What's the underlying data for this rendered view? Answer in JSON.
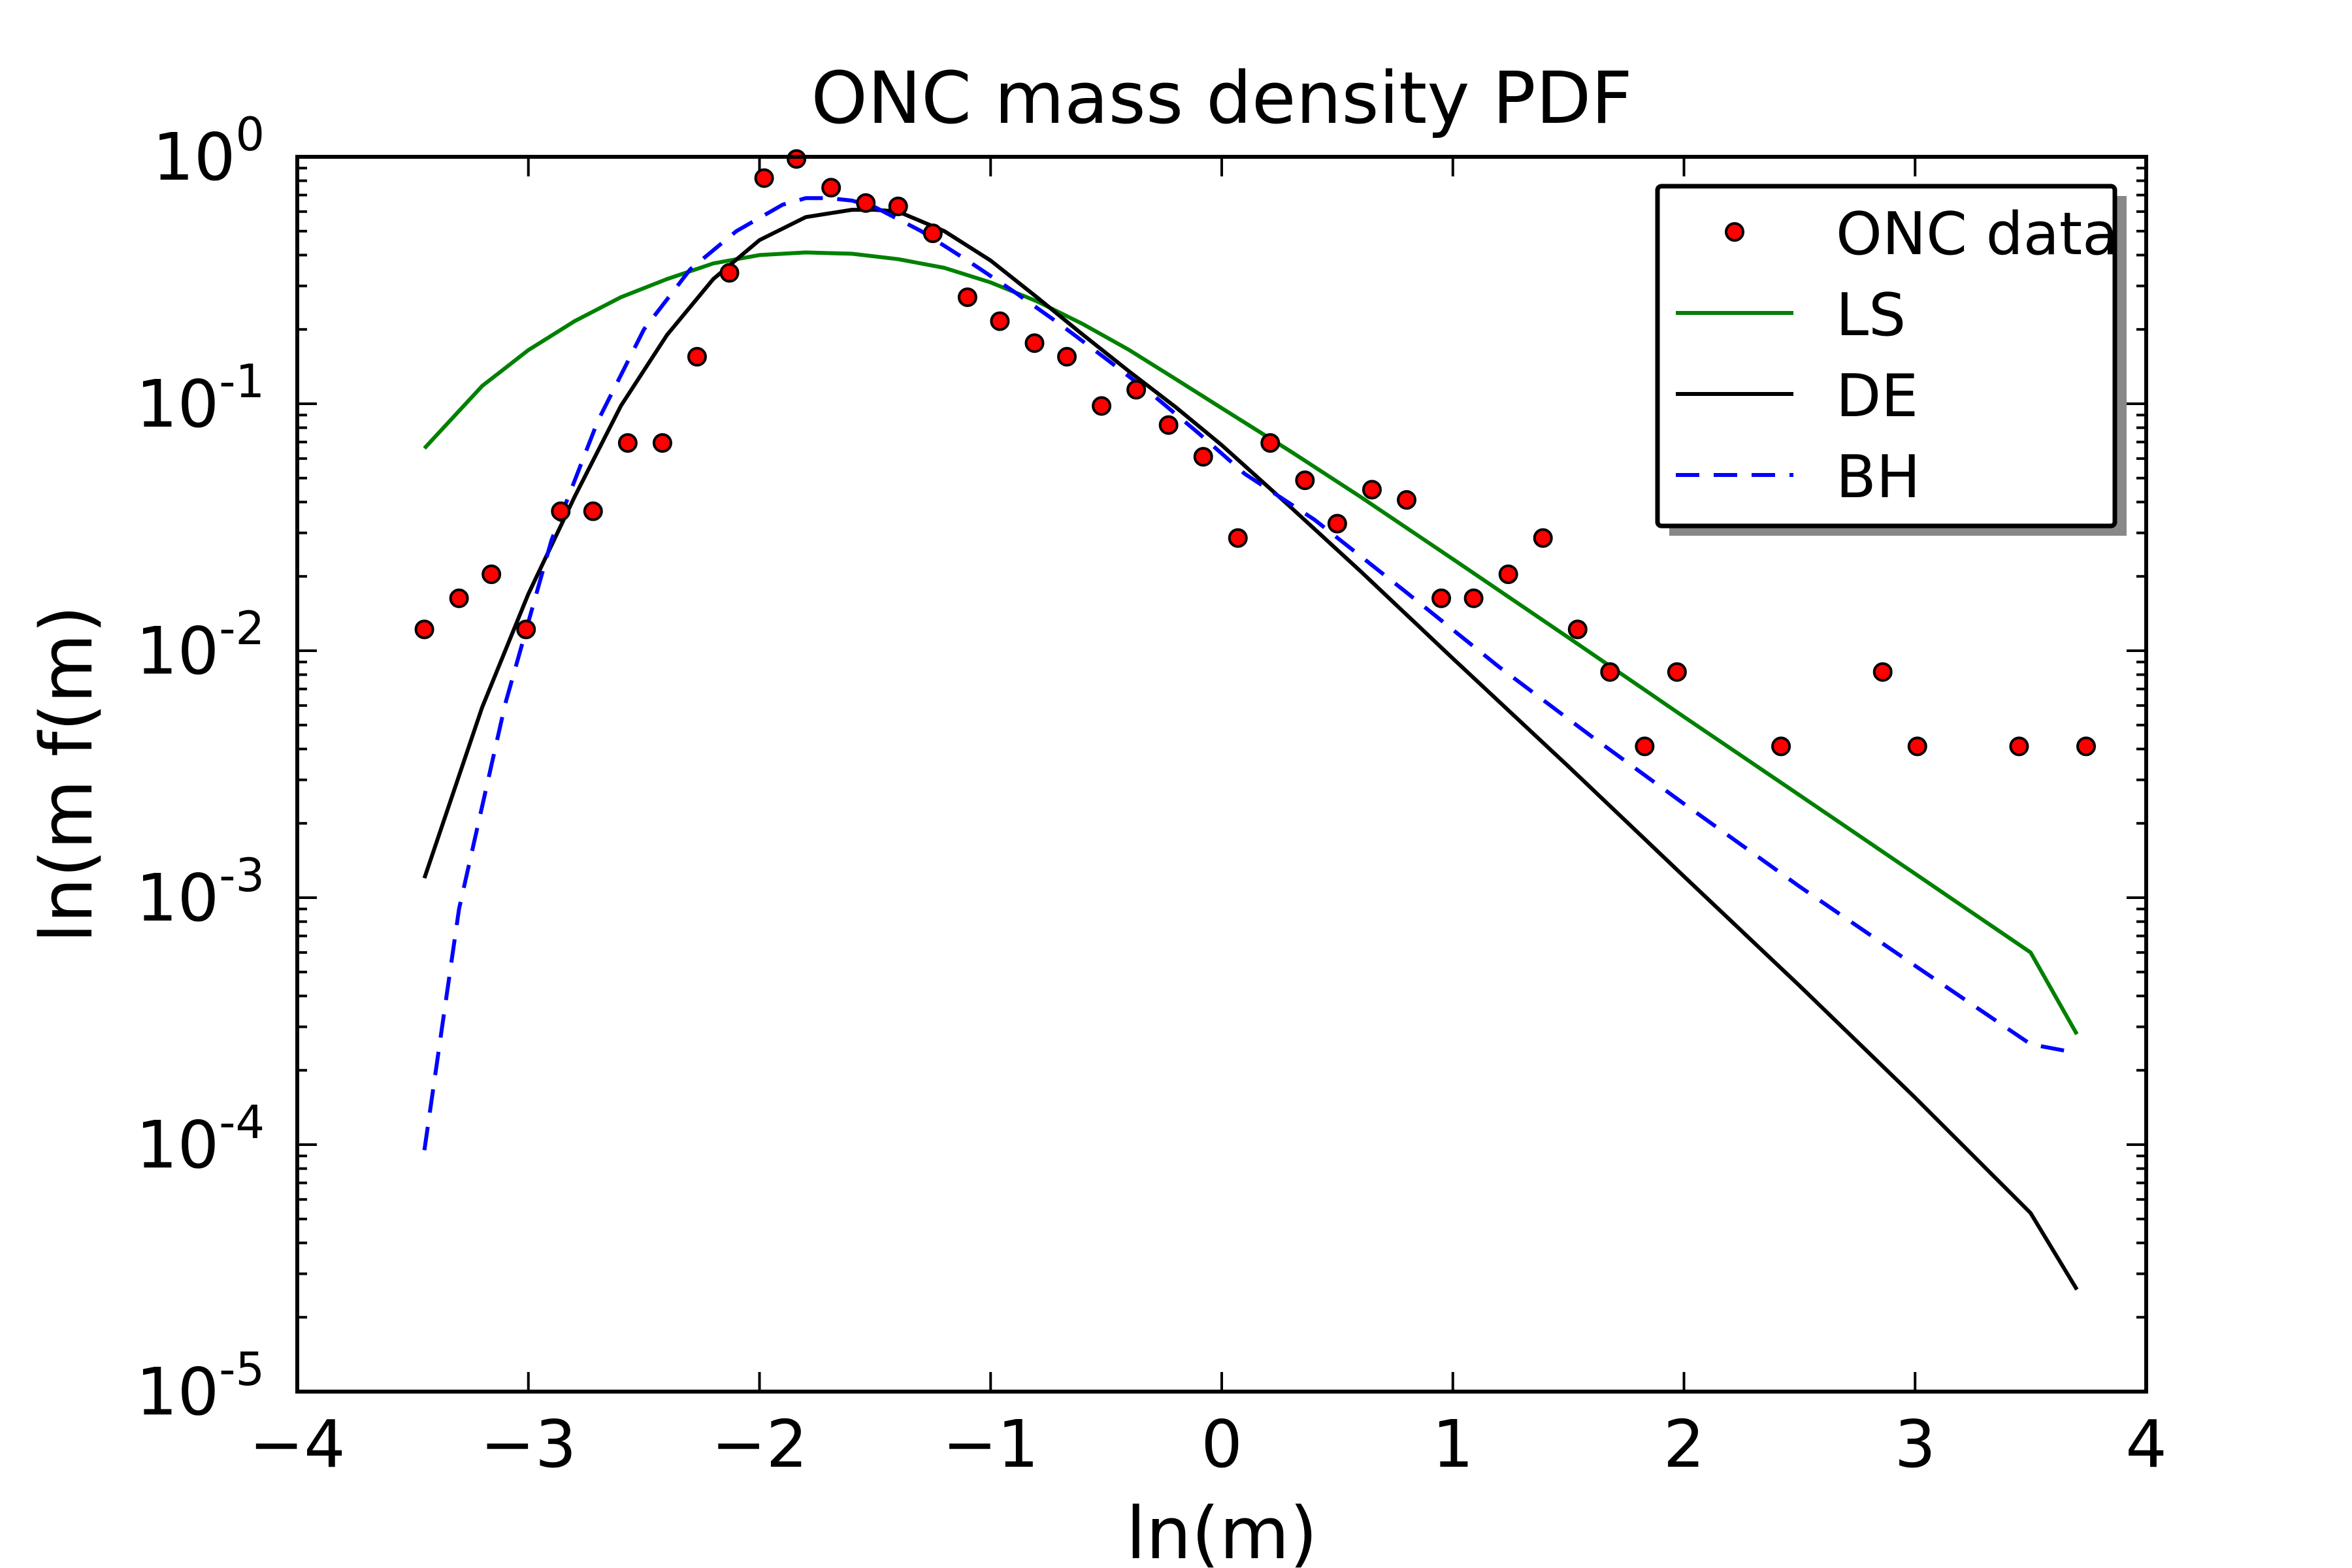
{
  "chart_data": {
    "type": "line",
    "title": "ONC mass density PDF",
    "xlabel": "ln(m)",
    "ylabel": "ln(m f(m)",
    "xlim": [
      -4,
      4
    ],
    "ylim": [
      1e-05,
      1
    ],
    "y_scale": "log",
    "grid": false,
    "legend_position": "top-right",
    "x_ticks": [
      -4,
      -3,
      -2,
      -1,
      0,
      1,
      2,
      3,
      4
    ],
    "x_tick_labels": [
      "−4",
      "−3",
      "−2",
      "−1",
      "0",
      "1",
      "2",
      "3",
      "4"
    ],
    "y_ticks": [
      {
        "value": 1e-05,
        "base": "10",
        "exp": "-5"
      },
      {
        "value": 0.0001,
        "base": "10",
        "exp": "-4"
      },
      {
        "value": 0.001,
        "base": "10",
        "exp": "-3"
      },
      {
        "value": 0.01,
        "base": "10",
        "exp": "-2"
      },
      {
        "value": 0.1,
        "base": "10",
        "exp": "-1"
      },
      {
        "value": 1,
        "base": "10",
        "exp": "0"
      }
    ],
    "series": [
      {
        "name": "ONC data",
        "kind": "scatter",
        "color": "#ff0000",
        "edge_color": "#000000",
        "x": [
          -3.45,
          -3.3,
          -3.16,
          -3.01,
          -2.86,
          -2.72,
          -2.57,
          -2.42,
          -2.27,
          -2.13,
          -1.98,
          -1.84,
          -1.69,
          -1.54,
          -1.4,
          -1.25,
          -1.1,
          -0.96,
          -0.81,
          -0.67,
          -0.52,
          -0.37,
          -0.23,
          -0.08,
          0.07,
          0.21,
          0.36,
          0.5,
          0.65,
          0.8,
          0.95,
          1.09,
          1.24,
          1.39,
          1.54,
          1.68,
          1.83,
          1.97,
          2.42,
          2.86,
          3.01,
          3.45,
          3.74
        ],
        "y": [
          0.0122,
          0.0163,
          0.0204,
          0.0122,
          0.0367,
          0.0367,
          0.0694,
          0.0694,
          0.155,
          0.339,
          0.82,
          0.98,
          0.75,
          0.65,
          0.63,
          0.49,
          0.27,
          0.216,
          0.176,
          0.155,
          0.098,
          0.114,
          0.082,
          0.061,
          0.0286,
          0.0694,
          0.049,
          0.0327,
          0.0449,
          0.0408,
          0.0163,
          0.0163,
          0.0204,
          0.0286,
          0.0122,
          0.0082,
          0.0041,
          0.0082,
          0.0041,
          0.0082,
          0.0041,
          0.0041,
          0.0041
        ]
      },
      {
        "name": "LS",
        "kind": "line",
        "color": "#008000",
        "dash": "solid",
        "x": [
          -3.45,
          -3.2,
          -3.0,
          -2.8,
          -2.6,
          -2.4,
          -2.2,
          -2.0,
          -1.8,
          -1.6,
          -1.4,
          -1.2,
          -1.0,
          -0.8,
          -0.6,
          -0.4,
          -0.2,
          0.0,
          0.3,
          0.6,
          1.0,
          1.5,
          2.0,
          2.5,
          3.0,
          3.5,
          3.7
        ],
        "y": [
          0.066,
          0.118,
          0.165,
          0.216,
          0.27,
          0.32,
          0.37,
          0.4,
          0.41,
          0.405,
          0.385,
          0.355,
          0.31,
          0.26,
          0.21,
          0.165,
          0.126,
          0.096,
          0.064,
          0.042,
          0.0235,
          0.0113,
          0.0054,
          0.0026,
          0.00125,
          0.0006,
          0.00028
        ]
      },
      {
        "name": "DE",
        "kind": "line",
        "color": "#000000",
        "dash": "solid",
        "x": [
          -3.45,
          -3.2,
          -3.0,
          -2.8,
          -2.6,
          -2.4,
          -2.2,
          -2.0,
          -1.8,
          -1.6,
          -1.5,
          -1.4,
          -1.2,
          -1.0,
          -0.8,
          -0.6,
          -0.4,
          -0.2,
          0.0,
          0.3,
          0.6,
          1.0,
          1.5,
          2.0,
          2.5,
          3.0,
          3.5,
          3.7
        ],
        "y": [
          0.0012,
          0.0059,
          0.017,
          0.042,
          0.098,
          0.19,
          0.32,
          0.46,
          0.57,
          0.61,
          0.61,
          0.6,
          0.5,
          0.38,
          0.27,
          0.19,
          0.135,
          0.097,
          0.068,
          0.038,
          0.021,
          0.0093,
          0.0034,
          0.00122,
          0.00044,
          0.000155,
          5.28e-05,
          2.59e-05
        ]
      },
      {
        "name": "BH",
        "kind": "line",
        "color": "#0000ff",
        "dash": "dashed",
        "x": [
          -3.45,
          -3.3,
          -3.1,
          -2.9,
          -2.7,
          -2.5,
          -2.3,
          -2.1,
          -1.9,
          -1.8,
          -1.7,
          -1.6,
          -1.5,
          -1.3,
          -1.1,
          -0.9,
          -0.7,
          -0.5,
          -0.3,
          -0.1,
          0.1,
          0.4,
          0.8,
          1.2,
          1.6,
          2.0,
          2.5,
          3.0,
          3.5,
          3.7
        ],
        "y": [
          9.5e-05,
          0.0009,
          0.0061,
          0.028,
          0.085,
          0.2,
          0.35,
          0.5,
          0.64,
          0.68,
          0.68,
          0.665,
          0.625,
          0.5,
          0.38,
          0.285,
          0.21,
          0.152,
          0.109,
          0.076,
          0.052,
          0.034,
          0.0172,
          0.0086,
          0.0045,
          0.0024,
          0.00111,
          0.00053,
          0.000255,
          0.000235
        ]
      }
    ]
  }
}
